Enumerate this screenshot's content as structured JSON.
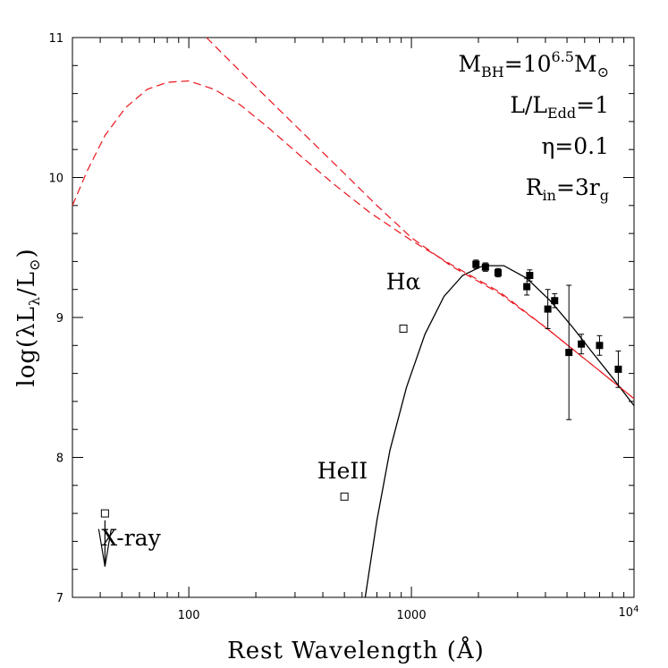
{
  "chart_data": {
    "type": "scatter",
    "xlabel": "Rest Wavelength (Å)",
    "ylabel": "log(λL",
    "ylabel_sub1": "λ",
    "ylabel_mid": "/L",
    "ylabel_sub2": "⊙",
    "ylabel_end": ")",
    "x_scale": "log",
    "xlim": [
      30,
      10000
    ],
    "ylim": [
      7,
      11
    ],
    "x_ticks": [
      {
        "value": 100,
        "label": "100"
      },
      {
        "value": 1000,
        "label": "1000"
      },
      {
        "value": 10000,
        "label": "10"
      },
      {
        "value_sup": "4"
      }
    ],
    "y_ticks": [
      {
        "value": 7,
        "label": "7"
      },
      {
        "value": 8,
        "label": "8"
      },
      {
        "value": 9,
        "label": "9"
      },
      {
        "value": 10,
        "label": "10"
      },
      {
        "value": 11,
        "label": "11"
      }
    ],
    "parameters": {
      "mbh": {
        "prefix": "M",
        "sub": "BH",
        "eq": "=10",
        "sup": "6.5",
        "unit": "M",
        "unit_sub": "⊙"
      },
      "edd": {
        "prefix": "L/L",
        "sub": "Edd",
        "eq": "=1"
      },
      "eta": {
        "text": "η=0.1"
      },
      "rin": {
        "prefix": "R",
        "sub": "in",
        "eq": "=3r",
        "tail_sub": "g"
      }
    },
    "annotations": [
      {
        "text": "Hα",
        "x": 920,
        "y": 9.2
      },
      {
        "text": "HeII",
        "x": 490,
        "y": 7.85
      },
      {
        "text": "X-ray",
        "x": 42,
        "y": 7.37
      }
    ],
    "series": [
      {
        "marker": "filled-square",
        "points": [
          {
            "x": 1950,
            "y": 9.38,
            "err": 0.03
          },
          {
            "x": 2150,
            "y": 9.36,
            "err": 0.03
          },
          {
            "x": 2450,
            "y": 9.32,
            "err": 0.03
          },
          {
            "x": 3300,
            "y": 9.22,
            "err": 0.06
          },
          {
            "x": 3400,
            "y": 9.3,
            "err": 0.04
          },
          {
            "x": 4100,
            "y": 9.06,
            "err": 0.14
          },
          {
            "x": 4400,
            "y": 9.12,
            "err": 0.05
          },
          {
            "x": 5100,
            "y": 8.75,
            "err": 0.48
          },
          {
            "x": 5800,
            "y": 8.81,
            "err": 0.07
          },
          {
            "x": 7000,
            "y": 8.8,
            "err": 0.07
          },
          {
            "x": 8500,
            "y": 8.63,
            "err": 0.13
          }
        ]
      },
      {
        "marker": "open-square",
        "points": [
          {
            "x": 920,
            "y": 8.92
          },
          {
            "x": 500,
            "y": 7.72
          },
          {
            "x": 42,
            "y": 7.6
          }
        ]
      },
      {
        "marker": "upper-limit-arrow",
        "points": [
          {
            "x": 42,
            "y_from": 7.55,
            "y_to": 7.22
          }
        ]
      },
      {
        "style": "solid-black",
        "type": "line",
        "points": [
          [
            620,
            7.0
          ],
          [
            700,
            7.55
          ],
          [
            800,
            8.05
          ],
          [
            950,
            8.5
          ],
          [
            1150,
            8.88
          ],
          [
            1400,
            9.15
          ],
          [
            1700,
            9.3
          ],
          [
            2100,
            9.37
          ],
          [
            2600,
            9.37
          ],
          [
            3300,
            9.28
          ],
          [
            4200,
            9.12
          ],
          [
            5300,
            8.93
          ],
          [
            6500,
            8.75
          ],
          [
            8000,
            8.57
          ],
          [
            10000,
            8.37
          ]
        ]
      },
      {
        "style": "dashed-red",
        "type": "line",
        "points": [
          [
            30,
            9.8
          ],
          [
            35,
            10.05
          ],
          [
            42,
            10.3
          ],
          [
            52,
            10.5
          ],
          [
            65,
            10.63
          ],
          [
            80,
            10.68
          ],
          [
            100,
            10.69
          ],
          [
            130,
            10.63
          ],
          [
            170,
            10.52
          ],
          [
            230,
            10.35
          ],
          [
            320,
            10.15
          ],
          [
            450,
            9.95
          ],
          [
            650,
            9.75
          ],
          [
            1000,
            9.55
          ],
          [
            1500,
            9.38
          ],
          [
            2500,
            9.18
          ],
          [
            4000,
            8.93
          ],
          [
            6500,
            8.66
          ],
          [
            10000,
            8.42
          ]
        ]
      },
      {
        "style": "dashed-red",
        "type": "line",
        "points": [
          [
            120,
            11.0
          ],
          [
            180,
            10.72
          ],
          [
            280,
            10.42
          ],
          [
            450,
            10.1
          ],
          [
            700,
            9.8
          ],
          [
            1000,
            9.57
          ],
          [
            1500,
            9.37
          ],
          [
            2500,
            9.17
          ],
          [
            4000,
            8.93
          ],
          [
            6500,
            8.66
          ],
          [
            10000,
            8.42
          ]
        ]
      }
    ]
  }
}
